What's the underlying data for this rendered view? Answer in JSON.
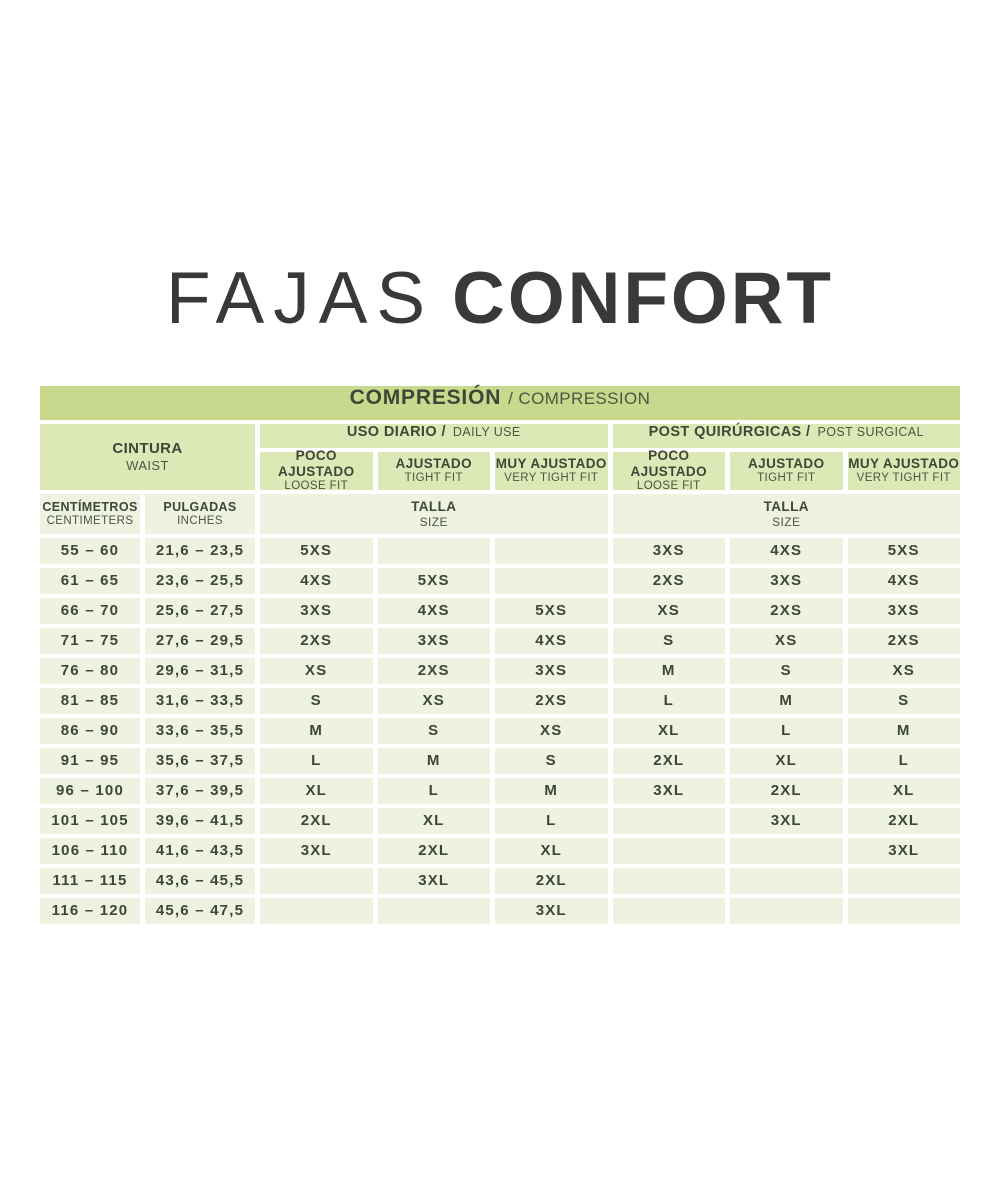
{
  "title": {
    "light": "FAJAS",
    "bold": "CONFORT"
  },
  "chart_data": {
    "type": "table",
    "title": "COMPRESIÓN / COMPRESSION",
    "header": {
      "compression_es": "COMPRESIÓN",
      "compression_en": "/ COMPRESSION",
      "waist_es": "CINTURA",
      "waist_en": "WAIST",
      "daily_es": "USO DIARIO /",
      "daily_en": "DAILY USE",
      "post_es": "POST QUIRÚRGICAS /",
      "post_en": "POST SURGICAL",
      "fits": [
        {
          "es": "POCO AJUSTADO",
          "en": "LOOSE FIT"
        },
        {
          "es": "AJUSTADO",
          "en": "TIGHT FIT"
        },
        {
          "es": "MUY AJUSTADO",
          "en": "VERY TIGHT FIT"
        }
      ],
      "cm_es": "CENTÍMETROS",
      "cm_en": "CENTIMETERS",
      "in_es": "PULGADAS",
      "in_en": "INCHES",
      "size_es": "TALLA",
      "size_en": "SIZE"
    },
    "rows": [
      {
        "cm": "55 – 60",
        "inches": "21,6 – 23,5",
        "sizes": [
          "5XS",
          "",
          "",
          "3XS",
          "4XS",
          "5XS"
        ]
      },
      {
        "cm": "61 – 65",
        "inches": "23,6 – 25,5",
        "sizes": [
          "4XS",
          "5XS",
          "",
          "2XS",
          "3XS",
          "4XS"
        ]
      },
      {
        "cm": "66 – 70",
        "inches": "25,6 – 27,5",
        "sizes": [
          "3XS",
          "4XS",
          "5XS",
          "XS",
          "2XS",
          "3XS"
        ]
      },
      {
        "cm": "71 – 75",
        "inches": "27,6 – 29,5",
        "sizes": [
          "2XS",
          "3XS",
          "4XS",
          "S",
          "XS",
          "2XS"
        ]
      },
      {
        "cm": "76 – 80",
        "inches": "29,6 – 31,5",
        "sizes": [
          "XS",
          "2XS",
          "3XS",
          "M",
          "S",
          "XS"
        ]
      },
      {
        "cm": "81 – 85",
        "inches": "31,6 – 33,5",
        "sizes": [
          "S",
          "XS",
          "2XS",
          "L",
          "M",
          "S"
        ]
      },
      {
        "cm": "86 – 90",
        "inches": "33,6 – 35,5",
        "sizes": [
          "M",
          "S",
          "XS",
          "XL",
          "L",
          "M"
        ]
      },
      {
        "cm": "91 – 95",
        "inches": "35,6 – 37,5",
        "sizes": [
          "L",
          "M",
          "S",
          "2XL",
          "XL",
          "L"
        ]
      },
      {
        "cm": "96 – 100",
        "inches": "37,6 – 39,5",
        "sizes": [
          "XL",
          "L",
          "M",
          "3XL",
          "2XL",
          "XL"
        ]
      },
      {
        "cm": "101 – 105",
        "inches": "39,6 – 41,5",
        "sizes": [
          "2XL",
          "XL",
          "L",
          "",
          "3XL",
          "2XL"
        ]
      },
      {
        "cm": "106 – 110",
        "inches": "41,6 – 43,5",
        "sizes": [
          "3XL",
          "2XL",
          "XL",
          "",
          "",
          "3XL"
        ]
      },
      {
        "cm": "111 – 115",
        "inches": "43,6 – 45,5",
        "sizes": [
          "",
          "3XL",
          "2XL",
          "",
          "",
          ""
        ]
      },
      {
        "cm": "116 – 120",
        "inches": "45,6 – 47,5",
        "sizes": [
          "",
          "",
          "3XL",
          "",
          "",
          ""
        ]
      }
    ]
  },
  "colors": {
    "band": "#c8d98d",
    "header_cell": "#dce9b6",
    "light_cell": "#edf2e1",
    "text_dark": "#3f4637",
    "text_secondary": "#4d5443",
    "title_text": "#39393b",
    "page_background": "#ffffff"
  }
}
